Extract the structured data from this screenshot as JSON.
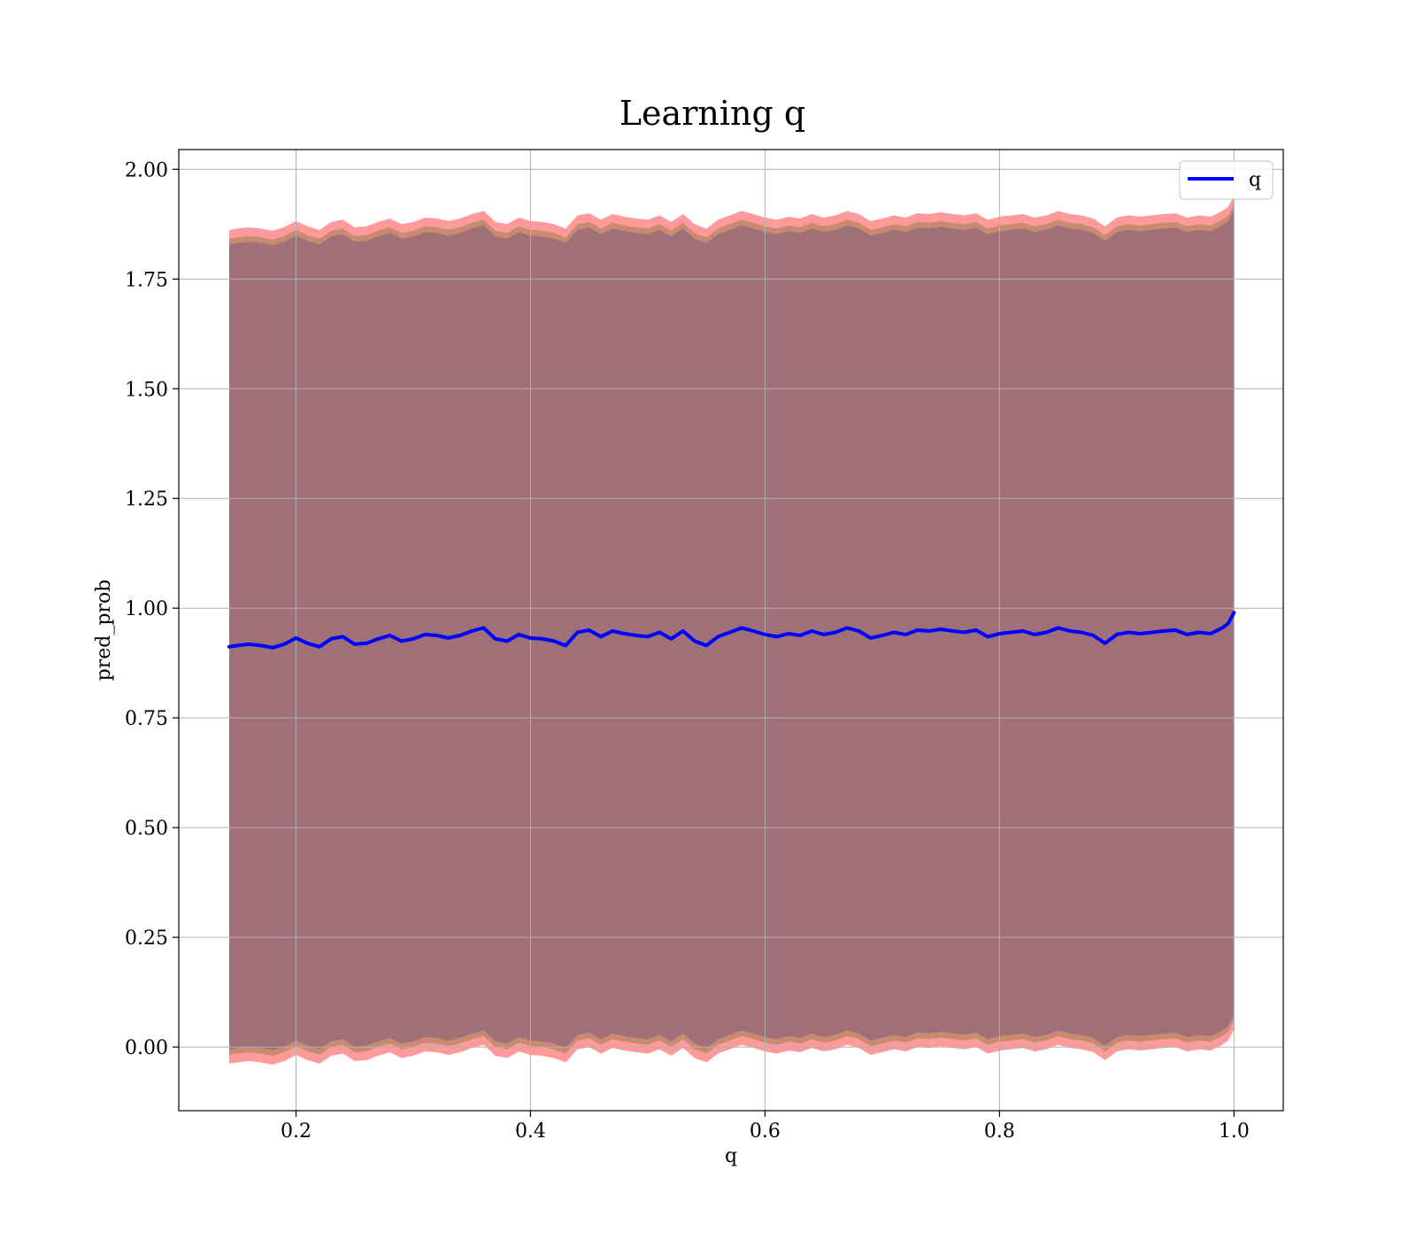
{
  "chart_data": {
    "type": "line",
    "title": "Learning q",
    "xlabel": "q",
    "ylabel": "pred_prob",
    "xlim": [
      0.1,
      1.042
    ],
    "ylim": [
      -0.145,
      2.045
    ],
    "xticks": [
      0.2,
      0.4,
      0.6,
      0.8,
      1.0
    ],
    "xtick_labels": [
      "0.2",
      "0.4",
      "0.6",
      "0.8",
      "1.0"
    ],
    "yticks": [
      0.0,
      0.25,
      0.5,
      0.75,
      1.0,
      1.25,
      1.5,
      1.75,
      2.0
    ],
    "ytick_labels": [
      "0.00",
      "0.25",
      "0.50",
      "0.75",
      "1.00",
      "1.25",
      "1.50",
      "1.75",
      "2.00"
    ],
    "grid": true,
    "legend": {
      "placement": "top-right",
      "entries": [
        "q"
      ]
    },
    "colors": {
      "line": "#0000ff",
      "band_outer": "#ff9a9a",
      "band_middle": "#c98a72",
      "band_inner": "#a07078",
      "grid": "#b0b0b0"
    },
    "series": [
      {
        "name": "q",
        "x": [
          0.143,
          0.15,
          0.16,
          0.17,
          0.18,
          0.19,
          0.2,
          0.21,
          0.22,
          0.23,
          0.24,
          0.25,
          0.26,
          0.27,
          0.28,
          0.29,
          0.3,
          0.31,
          0.32,
          0.33,
          0.34,
          0.35,
          0.36,
          0.37,
          0.38,
          0.39,
          0.4,
          0.41,
          0.42,
          0.43,
          0.44,
          0.45,
          0.46,
          0.47,
          0.48,
          0.49,
          0.5,
          0.51,
          0.52,
          0.53,
          0.54,
          0.55,
          0.56,
          0.57,
          0.58,
          0.59,
          0.6,
          0.61,
          0.62,
          0.63,
          0.64,
          0.65,
          0.66,
          0.67,
          0.68,
          0.69,
          0.7,
          0.71,
          0.72,
          0.73,
          0.74,
          0.75,
          0.76,
          0.77,
          0.78,
          0.79,
          0.8,
          0.81,
          0.82,
          0.83,
          0.84,
          0.85,
          0.86,
          0.87,
          0.88,
          0.89,
          0.9,
          0.91,
          0.92,
          0.93,
          0.94,
          0.95,
          0.96,
          0.97,
          0.98,
          0.99,
          0.995,
          1.0
        ],
        "y": [
          0.912,
          0.915,
          0.918,
          0.915,
          0.91,
          0.918,
          0.932,
          0.92,
          0.912,
          0.93,
          0.935,
          0.918,
          0.92,
          0.93,
          0.938,
          0.925,
          0.93,
          0.94,
          0.938,
          0.932,
          0.938,
          0.948,
          0.955,
          0.93,
          0.925,
          0.94,
          0.932,
          0.93,
          0.925,
          0.915,
          0.945,
          0.95,
          0.935,
          0.948,
          0.942,
          0.938,
          0.935,
          0.945,
          0.93,
          0.948,
          0.925,
          0.915,
          0.935,
          0.945,
          0.955,
          0.948,
          0.94,
          0.935,
          0.942,
          0.938,
          0.948,
          0.94,
          0.945,
          0.955,
          0.948,
          0.932,
          0.938,
          0.945,
          0.94,
          0.95,
          0.948,
          0.952,
          0.948,
          0.945,
          0.95,
          0.935,
          0.942,
          0.945,
          0.948,
          0.94,
          0.945,
          0.955,
          0.948,
          0.945,
          0.938,
          0.92,
          0.94,
          0.945,
          0.942,
          0.945,
          0.948,
          0.95,
          0.94,
          0.945,
          0.942,
          0.955,
          0.965,
          0.99
        ]
      }
    ],
    "bands": {
      "inner_half_width": 0.917,
      "middle_half_width": 0.93,
      "outer_half_width": 0.95
    }
  }
}
